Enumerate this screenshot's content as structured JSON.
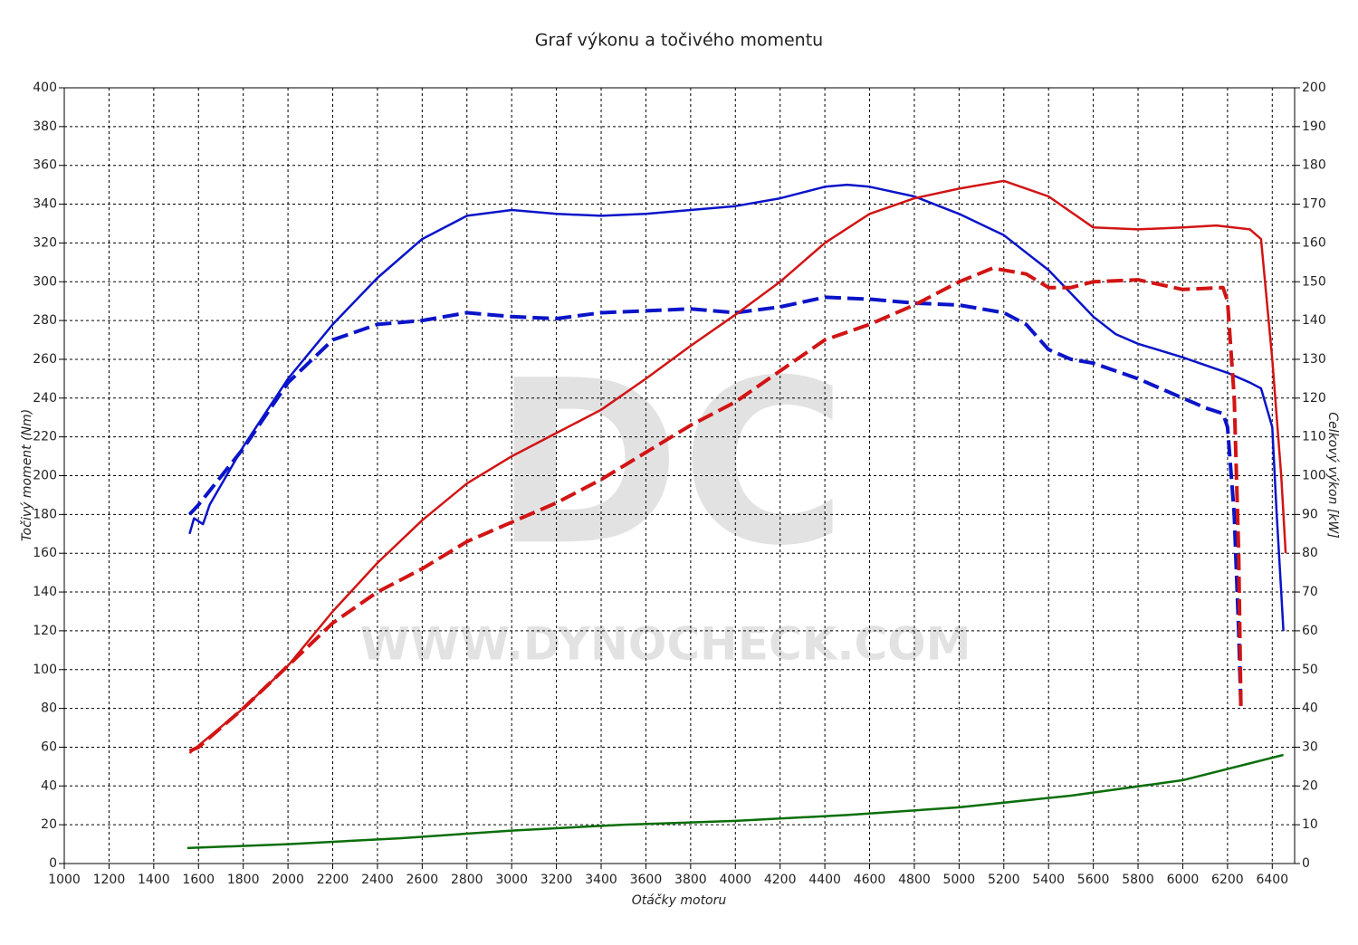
{
  "chart_data": {
    "type": "line",
    "title": "Graf výkonu a točivého momentu",
    "x_label": "Otáčky motoru",
    "y_label": "Točivý moment (Nm)",
    "y2_label": "Celkový výkon [kW]",
    "watermark": "DC",
    "watermark_url": "WWW.DYNOCHECK.COM",
    "xlim": [
      1000,
      6500
    ],
    "xticks": [
      1000,
      1200,
      1400,
      1600,
      1800,
      2000,
      2200,
      2400,
      2600,
      2800,
      3000,
      3200,
      3400,
      3600,
      3800,
      4000,
      4200,
      4400,
      4600,
      4800,
      5000,
      5200,
      5400,
      5600,
      5800,
      6000,
      6200,
      6400
    ],
    "ylim": [
      0,
      400
    ],
    "yticks": [
      0,
      20,
      40,
      60,
      80,
      100,
      120,
      140,
      160,
      180,
      200,
      220,
      240,
      260,
      280,
      300,
      320,
      340,
      360,
      380,
      400
    ],
    "y2lim": [
      0,
      200
    ],
    "y2ticks": [
      0,
      10,
      20,
      30,
      40,
      50,
      60,
      70,
      80,
      90,
      100,
      110,
      120,
      130,
      140,
      150,
      160,
      170,
      180,
      190,
      200
    ],
    "grid": true,
    "series": [
      {
        "color": "#0a14c8",
        "dash": false,
        "axis": "y",
        "x": [
          1560,
          1580,
          1620,
          1650,
          1800,
          2000,
          2200,
          2400,
          2600,
          2800,
          3000,
          3200,
          3400,
          3600,
          3800,
          4000,
          4200,
          4400,
          4500,
          4600,
          4800,
          5000,
          5200,
          5400,
          5600,
          5700,
          5800,
          6000,
          6200,
          6300,
          6350,
          6400,
          6420,
          6440,
          6450
        ],
        "values": [
          170,
          178,
          175,
          185,
          215,
          250,
          278,
          302,
          322,
          334,
          337,
          335,
          334,
          335,
          337,
          339,
          343,
          349,
          350,
          349,
          344,
          335,
          324,
          306,
          282,
          273,
          268,
          261,
          253,
          248,
          245,
          225,
          180,
          140,
          120
        ]
      },
      {
        "color": "#0a14c8",
        "dash": true,
        "axis": "y",
        "x": [
          1560,
          1600,
          1800,
          2000,
          2200,
          2400,
          2600,
          2800,
          3000,
          3200,
          3400,
          3600,
          3800,
          4000,
          4200,
          4400,
          4600,
          4800,
          5000,
          5200,
          5300,
          5400,
          5500,
          5600,
          5800,
          6000,
          6100,
          6180,
          6200,
          6230,
          6250,
          6260
        ],
        "values": [
          180,
          185,
          214,
          248,
          270,
          278,
          280,
          284,
          282,
          281,
          284,
          285,
          286,
          284,
          287,
          292,
          291,
          289,
          288,
          284,
          278,
          265,
          260,
          258,
          250,
          240,
          235,
          232,
          225,
          180,
          120,
          80
        ]
      },
      {
        "color": "#d21414",
        "dash": false,
        "axis": "y2",
        "x": [
          1560,
          1800,
          2000,
          2200,
          2400,
          2600,
          2800,
          3000,
          3200,
          3400,
          3600,
          3800,
          4000,
          4200,
          4400,
          4600,
          4800,
          5000,
          5200,
          5400,
          5600,
          5800,
          6000,
          6150,
          6300,
          6350,
          6400,
          6440,
          6460
        ],
        "values": [
          28.5,
          40,
          51,
          65,
          77.5,
          88.5,
          98,
          105,
          111,
          117,
          125,
          133.5,
          141.5,
          150,
          160,
          167.5,
          171.5,
          174,
          176,
          172,
          164,
          163.5,
          164,
          164.5,
          163.5,
          161,
          130,
          100,
          80
        ]
      },
      {
        "color": "#d21414",
        "dash": true,
        "axis": "y2",
        "x": [
          1560,
          1600,
          1800,
          2000,
          2200,
          2400,
          2600,
          2800,
          3000,
          3200,
          3400,
          3600,
          3800,
          4000,
          4200,
          4400,
          4600,
          4800,
          5000,
          5150,
          5300,
          5400,
          5500,
          5600,
          5800,
          6000,
          6180,
          6200,
          6230,
          6250,
          6260
        ],
        "values": [
          29,
          30,
          40,
          51,
          62,
          70,
          76,
          83,
          88,
          93,
          99,
          106,
          113,
          119,
          127,
          135,
          139,
          144,
          150,
          153.5,
          152,
          148.5,
          148.5,
          150,
          150.5,
          148,
          148.5,
          145,
          120,
          80,
          40
        ]
      },
      {
        "color": "#0a6e0a",
        "dash": false,
        "axis": "y2",
        "x": [
          1550,
          2000,
          2500,
          3000,
          3500,
          4000,
          4500,
          5000,
          5500,
          6000,
          6450
        ],
        "values": [
          4,
          5,
          6.5,
          8.5,
          10,
          11,
          12.5,
          14.5,
          17.5,
          21.5,
          28
        ]
      }
    ]
  }
}
